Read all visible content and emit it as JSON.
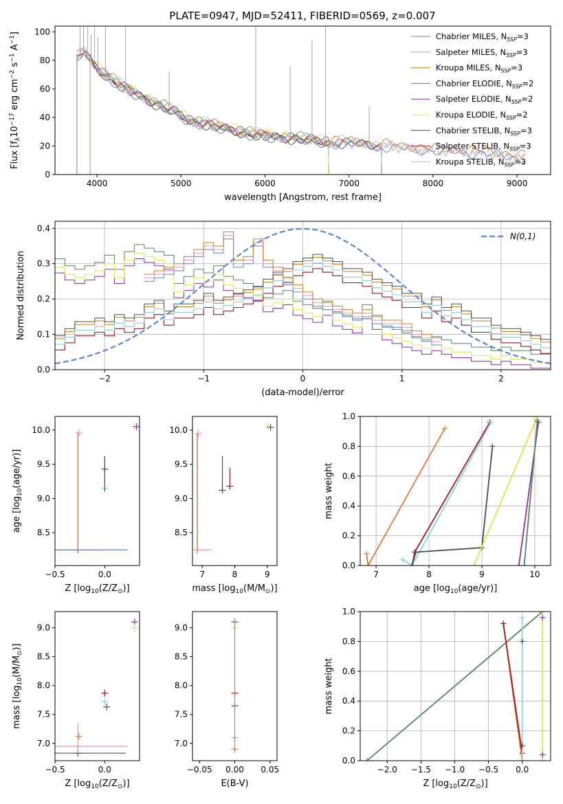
{
  "figure_title": "PLATE=0947, MJD=52411, FIBERID=0569, z=0.007",
  "colors": {
    "chabrier_miles": "#5b7fcf",
    "salpeter_miles": "#e68fc0",
    "kroupa_miles": "#c87d1c",
    "chabrier_elodie": "#4e8a55",
    "salpeter_elodie": "#8c2ca3",
    "kroupa_elodie": "#dbe64a",
    "chabrier_stelib": "#4a4a4a",
    "salpeter_stelib": "#a31a1a",
    "kroupa_stelib": "#86d6e0",
    "orange": "#e07b3a",
    "observed": "#9a9a9a",
    "gauss": "#5b86d6"
  },
  "chart_data": [
    {
      "id": "spectrum",
      "type": "line",
      "title": "PLATE=0947, MJD=52411, FIBERID=0569, z=0.007",
      "xlabel": "wavelength [Angstrom, rest frame]",
      "ylabel": "Flux [f",
      "xlim": [
        3500,
        9400
      ],
      "ylim": [
        0,
        104
      ],
      "xticks": [
        4000,
        5000,
        6000,
        7000,
        8000,
        9000
      ],
      "yticks": [
        0,
        20,
        40,
        60,
        80,
        100
      ],
      "legend": "top-right",
      "grid": false,
      "series": [
        {
          "name": "Chabrier MILES, N",
          "sub": "SSP",
          "suffix": "=3",
          "color_key": "chabrier_miles"
        },
        {
          "name": "Salpeter MILES, N",
          "sub": "SSP",
          "suffix": "=3",
          "color_key": "salpeter_miles"
        },
        {
          "name": "Kroupa MILES, N",
          "sub": "SSP",
          "suffix": "=3",
          "color_key": "kroupa_miles"
        },
        {
          "name": "Chabrier ELODIE, N",
          "sub": "SSP",
          "suffix": "=2",
          "color_key": "chabrier_elodie"
        },
        {
          "name": "Salpeter ELODIE, N",
          "sub": "SSP",
          "suffix": "=2",
          "color_key": "salpeter_elodie"
        },
        {
          "name": "Kroupa ELODIE, N",
          "sub": "SSP",
          "suffix": "=2",
          "color_key": "kroupa_elodie"
        },
        {
          "name": "Chabrier STELIB, N",
          "sub": "SSP",
          "suffix": "=3",
          "color_key": "chabrier_stelib"
        },
        {
          "name": "Salpeter STELIB, N",
          "sub": "SSP",
          "suffix": "=3",
          "color_key": "salpeter_stelib"
        },
        {
          "name": "Kroupa STELIB, N",
          "sub": "SSP",
          "suffix": "=3",
          "color_key": "kroupa_stelib"
        }
      ],
      "continuum": {
        "x": [
          3760,
          3850,
          3950,
          4050,
          4150,
          4300,
          4500,
          4700,
          4900,
          5100,
          5300,
          5500,
          5700,
          5900,
          6100,
          6300,
          6500,
          6700,
          6900,
          7100,
          7300,
          7500,
          7700,
          7900,
          8100,
          8300,
          8500,
          8700,
          8900,
          9100
        ],
        "y": [
          82,
          86,
          78,
          72,
          68,
          62,
          56,
          50,
          45,
          38,
          36,
          33,
          30,
          28,
          27,
          26,
          25,
          23,
          23,
          22,
          21,
          20,
          19,
          18,
          17,
          17,
          16,
          15,
          14,
          12
        ]
      },
      "emission_lines_x": [
        3800,
        3840,
        3890,
        3930,
        3970,
        4010,
        4100,
        4340,
        4860,
        5890,
        6300,
        6560,
        6720,
        7240
      ],
      "emission_lines_y": [
        104,
        104,
        104,
        98,
        104,
        96,
        104,
        104,
        72,
        104,
        76,
        94,
        104,
        48
      ]
    },
    {
      "id": "residuals",
      "type": "step",
      "xlabel": "(data-model)/error",
      "ylabel": "Normed distribution",
      "xlim": [
        -2.5,
        2.5
      ],
      "ylim": [
        0,
        0.42
      ],
      "xticks": [
        -2,
        -1,
        0,
        1,
        2
      ],
      "yticks": [
        0.0,
        0.1,
        0.2,
        0.3,
        0.4
      ],
      "grid": true,
      "legend_label": "N(0,1)",
      "gaussian": {
        "mean": 0,
        "sigma": 1
      },
      "bin_edges_start": -2.5,
      "bin_width": 0.1,
      "hist_upper_left": [
        0.29,
        0.27,
        0.26,
        0.27,
        0.28,
        0.3,
        0.26,
        0.31,
        0.33,
        0.32,
        0.31,
        0.3,
        0.22,
        0.24,
        0.26,
        0.25,
        0.27,
        0.24,
        0.23,
        0.22,
        0.21,
        0.18,
        0.19,
        0.2,
        0.17,
        0.16,
        0.15,
        0.17,
        0.14,
        0.13,
        0.12,
        0.16,
        0.13,
        0.1,
        0.09,
        0.08,
        0.07,
        0.06,
        0.07,
        0.06,
        0.05,
        0.05,
        0.04,
        0.04,
        0.03,
        0.04,
        0.03,
        0.03,
        0.02,
        0.02
      ],
      "hist_lower_left": [
        0.08,
        0.1,
        0.12,
        0.12,
        0.13,
        0.12,
        0.14,
        0.13,
        0.14,
        0.17,
        0.18,
        0.15,
        0.17,
        0.17,
        0.18,
        0.2,
        0.18,
        0.19,
        0.2,
        0.21,
        0.22,
        0.24,
        0.26,
        0.27,
        0.29,
        0.3,
        0.31,
        0.3,
        0.29,
        0.27,
        0.27,
        0.26,
        0.24,
        0.23,
        0.22,
        0.2,
        0.2,
        0.17,
        0.19,
        0.16,
        0.17,
        0.15,
        0.13,
        0.13,
        0.11,
        0.1,
        0.1,
        0.09,
        0.08,
        0.07
      ],
      "hist_upper_peak": [
        0.26,
        0.27,
        0.28,
        0.29,
        0.31,
        0.33,
        0.35,
        0.34,
        0.38,
        0.3,
        0.31,
        0.36,
        0.3,
        0.28,
        0.25,
        0.23,
        0.21,
        0.19,
        0.18,
        0.17,
        0.16,
        0.15,
        0.16,
        0.14,
        0.13,
        0.13,
        0.12,
        0.1,
        0.09,
        0.08
      ],
      "hist_upper_peak_start": -1.6
    },
    {
      "id": "age_vs_Z",
      "type": "scatter",
      "xlabel": "Z [log",
      "ylabel": "age  [log",
      "xlim": [
        -0.5,
        0.35
      ],
      "ylim": [
        8.02,
        10.2
      ],
      "xticks": [
        -0.5,
        0.0
      ],
      "yticks": [
        8.5,
        9.0,
        9.5,
        10.0
      ],
      "points": [
        {
          "x": -0.27,
          "y": 8.25,
          "xerr": 0.22,
          "color_key": "orange"
        },
        {
          "x": -0.27,
          "y": 8.25,
          "xerr": 0.5,
          "color_key": "chabrier_miles"
        },
        {
          "x": -0.26,
          "y": 9.96,
          "color_key": "salpeter_miles"
        },
        {
          "x": 0.0,
          "y": 9.15,
          "color_key": "kroupa_stelib"
        },
        {
          "x": 0.0,
          "y": 9.43,
          "color_key": "chabrier_stelib"
        },
        {
          "x": 0.3,
          "y": 10.05,
          "color_key": "kroupa_elodie"
        },
        {
          "x": 0.32,
          "y": 10.05,
          "color_key": "salpeter_elodie"
        }
      ]
    },
    {
      "id": "age_vs_mass",
      "type": "scatter",
      "xlabel": "mass [log",
      "ylabel": "",
      "xlim": [
        6.7,
        9.3
      ],
      "ylim": [
        8.02,
        10.2
      ],
      "xticks": [
        7,
        8,
        9
      ],
      "yticks": [
        8.5,
        9.0,
        9.5,
        10.0
      ],
      "points": [
        {
          "x": 6.85,
          "y": 8.25,
          "color_key": "orange"
        },
        {
          "x": 6.88,
          "y": 9.95,
          "color_key": "salpeter_miles"
        },
        {
          "x": 7.62,
          "y": 9.12,
          "color_key": "chabrier_stelib"
        },
        {
          "x": 7.85,
          "y": 9.18,
          "color_key": "salpeter_stelib"
        },
        {
          "x": 9.02,
          "y": 10.06,
          "color_key": "kroupa_elodie"
        },
        {
          "x": 9.1,
          "y": 10.04,
          "color_key": "salpeter_elodie"
        }
      ]
    },
    {
      "id": "weight_vs_age",
      "type": "line",
      "xlabel": "age  [log",
      "ylabel": "mass weight",
      "xlim": [
        6.7,
        10.3
      ],
      "ylim": [
        0,
        1.0
      ],
      "xticks": [
        7,
        8,
        9,
        10
      ],
      "yticks": [
        0.0,
        0.2,
        0.4,
        0.6,
        0.8,
        1.0
      ],
      "grid": true,
      "series": [
        {
          "color_key": "orange",
          "x": [
            6.82,
            6.85,
            8.3
          ],
          "y": [
            0.08,
            0.0,
            0.92
          ]
        },
        {
          "color_key": "salpeter_stelib",
          "x": [
            7.68,
            7.73,
            9.15
          ],
          "y": [
            0.0,
            0.09,
            0.96
          ]
        },
        {
          "color_key": "kroupa_stelib",
          "x": [
            7.5,
            7.68,
            9.17
          ],
          "y": [
            0.04,
            0.0,
            0.96
          ]
        },
        {
          "color_key": "chabrier_stelib",
          "x": [
            7.68,
            7.75,
            9.0,
            9.2
          ],
          "y": [
            0.0,
            0.09,
            0.12,
            0.8
          ]
        },
        {
          "color_key": "kroupa_elodie",
          "x": [
            8.85,
            10.05
          ],
          "y": [
            0.0,
            1.0
          ]
        },
        {
          "color_key": "salpeter_elodie",
          "x": [
            9.7,
            10.07
          ],
          "y": [
            0.0,
            0.96
          ]
        },
        {
          "color_key": "chabrier_elodie",
          "x": [
            9.8,
            10.05
          ],
          "y": [
            0.0,
            0.97
          ]
        }
      ]
    },
    {
      "id": "mass_vs_Z",
      "type": "scatter",
      "xlabel": "Z [log",
      "ylabel": "mass [log",
      "xlim": [
        -0.5,
        0.35
      ],
      "ylim": [
        6.7,
        9.28
      ],
      "xticks": [
        -0.5,
        0.0
      ],
      "yticks": [
        7.0,
        7.5,
        8.0,
        8.5,
        9.0
      ],
      "points": [
        {
          "x": -0.27,
          "y": 6.83,
          "xerr": 0.48,
          "color_key": "chabrier_stelib"
        },
        {
          "x": -0.27,
          "y": 6.95,
          "xerr": 0.5,
          "color_key": "salpeter_miles"
        },
        {
          "x": -0.26,
          "y": 7.12,
          "color_key": "orange"
        },
        {
          "x": 0.0,
          "y": 7.87,
          "color_key": "salpeter_stelib"
        },
        {
          "x": 0.0,
          "y": 7.72,
          "color_key": "kroupa_stelib"
        },
        {
          "x": 0.02,
          "y": 7.63,
          "color_key": "chabrier_stelib"
        },
        {
          "x": 0.3,
          "y": 9.1,
          "color_key": "salpeter_elodie"
        },
        {
          "x": 0.3,
          "y": 9.0,
          "color_key": "kroupa_elodie"
        }
      ]
    },
    {
      "id": "mass_vs_ebv",
      "type": "scatter",
      "xlabel": "E(B-V)",
      "ylabel": "",
      "xlim": [
        -0.06,
        0.06
      ],
      "ylim": [
        6.7,
        9.28
      ],
      "xticks": [
        -0.05,
        0.0,
        0.05
      ],
      "yticks": [
        7.0,
        7.5,
        8.0,
        8.5,
        9.0
      ],
      "points": [
        {
          "x": 0.0,
          "y": 6.9,
          "color_key": "orange"
        },
        {
          "x": 0.0,
          "y": 7.1,
          "color_key": "salpeter_miles"
        },
        {
          "x": 0.0,
          "y": 7.65,
          "color_key": "chabrier_stelib"
        },
        {
          "x": 0.0,
          "y": 7.87,
          "color_key": "salpeter_stelib"
        },
        {
          "x": 0.0,
          "y": 9.0,
          "color_key": "kroupa_elodie"
        },
        {
          "x": 0.0,
          "y": 9.1,
          "color_key": "salpeter_elodie"
        }
      ]
    },
    {
      "id": "weight_vs_Z",
      "type": "line",
      "xlabel": "Z [log",
      "ylabel": "mass weight",
      "xlim": [
        -2.4,
        0.42
      ],
      "ylim": [
        0,
        1.0
      ],
      "xticks": [
        -2.0,
        -1.5,
        -1.0,
        -0.5,
        0.0
      ],
      "yticks": [
        0.0,
        0.2,
        0.4,
        0.6,
        0.8,
        1.0
      ],
      "grid": true,
      "series": [
        {
          "color_key": "chabrier_elodie",
          "x": [
            -2.3,
            0.3
          ],
          "y": [
            0.0,
            1.0
          ]
        },
        {
          "color_key": "orange",
          "x": [
            -0.28,
            0.0
          ],
          "y": [
            0.92,
            0.0
          ]
        },
        {
          "color_key": "salpeter_stelib",
          "x": [
            -0.28,
            0.0
          ],
          "y": [
            0.92,
            0.05
          ]
        },
        {
          "color_key": "kroupa_stelib",
          "x": [
            0.0,
            0.0
          ],
          "y": [
            0.0,
            0.96
          ]
        },
        {
          "color_key": "kroupa_elodie",
          "x": [
            0.3,
            0.3
          ],
          "y": [
            0.0,
            1.0
          ]
        }
      ],
      "markers": [
        {
          "x": 0.0,
          "y": 0.8,
          "color_key": "chabrier_stelib"
        },
        {
          "x": 0.0,
          "y": 0.1,
          "color_key": "chabrier_stelib"
        },
        {
          "x": 0.3,
          "y": 0.96,
          "color_key": "salpeter_elodie"
        },
        {
          "x": 0.3,
          "y": 0.04,
          "color_key": "salpeter_elodie"
        }
      ]
    }
  ]
}
